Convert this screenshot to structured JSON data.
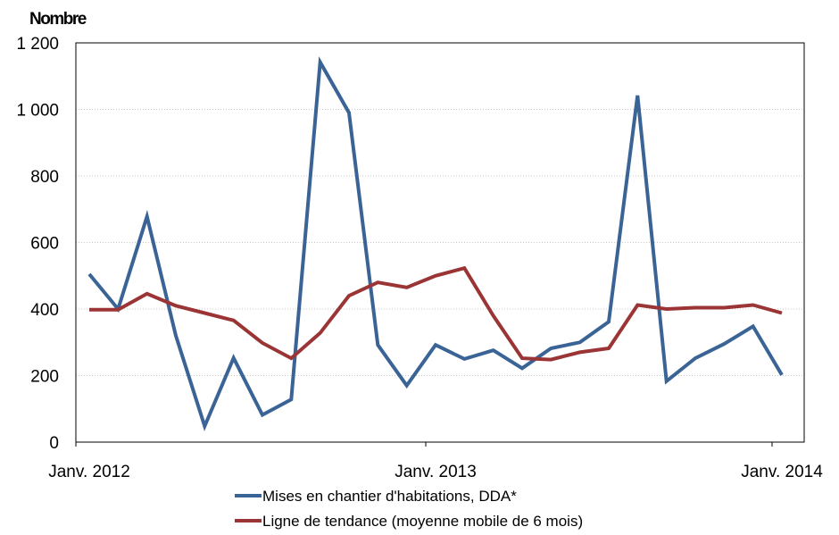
{
  "chart_data": {
    "type": "line",
    "ylabel": "Nombre",
    "ylim": [
      0,
      1200
    ],
    "yticks": [
      0,
      200,
      400,
      600,
      800,
      1000,
      1200
    ],
    "ytick_labels": [
      "0",
      "200",
      "400",
      "600",
      "800",
      "1 000",
      "1 200"
    ],
    "grid": true,
    "xlim": [
      "2012-01",
      "2014-01"
    ],
    "xtick_labels": [
      "Janv. 2012",
      "Janv. 2013",
      "Janv. 2014"
    ],
    "x": [
      "2012-01",
      "2012-02",
      "2012-03",
      "2012-04",
      "2012-05",
      "2012-06",
      "2012-07",
      "2012-08",
      "2012-09",
      "2012-10",
      "2012-11",
      "2012-12",
      "2013-01",
      "2013-02",
      "2013-03",
      "2013-04",
      "2013-05",
      "2013-06",
      "2013-07",
      "2013-08",
      "2013-09",
      "2013-10",
      "2013-11",
      "2013-12",
      "2014-01"
    ],
    "series": [
      {
        "name": "Mises en chantier d'habitations, DDA*",
        "color": "#3b6496",
        "values": [
          505,
          400,
          678,
          320,
          48,
          253,
          82,
          128,
          1142,
          990,
          292,
          170,
          292,
          250,
          276,
          222,
          282,
          300,
          362,
          1042,
          183,
          252,
          295,
          348,
          202
        ]
      },
      {
        "name": "Ligne de tendance (moyenne mobile de 6 mois)",
        "color": "#9b3535",
        "values": [
          398,
          398,
          446,
          410,
          388,
          366,
          298,
          252,
          328,
          440,
          480,
          465,
          500,
          523,
          380,
          252,
          248,
          270,
          282,
          412,
          400,
          404,
          404,
          412,
          388
        ]
      }
    ],
    "legend_position": "bottom"
  }
}
